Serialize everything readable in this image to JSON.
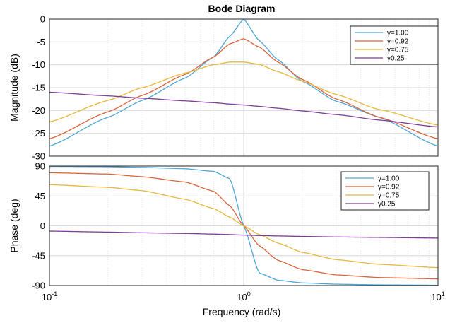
{
  "chart_data": {
    "type": "line",
    "title": "Bode Diagram",
    "xlabel": "Frequency  (rad/s)",
    "xscale": "log",
    "xlim": [
      0.1,
      10
    ],
    "x_ticks": [
      {
        "base": "10",
        "exp": "-1"
      },
      {
        "base": "10",
        "exp": "0"
      },
      {
        "base": "10",
        "exp": "1"
      }
    ],
    "grid": true,
    "legend_position": "top-right",
    "panels": [
      {
        "name": "magnitude",
        "ylabel": "Magnitude (dB)",
        "ylim": [
          -30,
          0
        ],
        "yticks": [
          "0",
          "-5",
          "-10",
          "-15",
          "-20",
          "-25",
          "-30"
        ],
        "ytick_values": [
          0,
          -5,
          -10,
          -15,
          -20,
          -25,
          -30
        ]
      },
      {
        "name": "phase",
        "ylabel": "Phase (deg)",
        "ylim": [
          -90,
          90
        ],
        "yticks": [
          "90",
          "45",
          "0",
          "-45",
          "-90"
        ],
        "ytick_values": [
          90,
          45,
          0,
          -45,
          -90
        ]
      }
    ],
    "series": [
      {
        "name": "γ=1.00",
        "color": "#4da6d6",
        "x": [
          0.1,
          0.2,
          0.3,
          0.5,
          0.7,
          0.85,
          1.0,
          1.2,
          1.5,
          2,
          3,
          5,
          10
        ],
        "magnitude": [
          -27.8,
          -21.5,
          -17.8,
          -12.9,
          -8.3,
          -3.7,
          0,
          -4.7,
          -8.9,
          -13.6,
          -18.0,
          -21.5,
          -27.8
        ],
        "phase": [
          89.5,
          89,
          88,
          86,
          82,
          71,
          0,
          -71,
          -82,
          -86,
          -88,
          -89,
          -89.5
        ]
      },
      {
        "name": "γ=0.92",
        "color": "#d9643a",
        "x": [
          0.1,
          0.2,
          0.3,
          0.5,
          0.7,
          0.85,
          1.0,
          1.2,
          1.5,
          2,
          3,
          5,
          10
        ],
        "magnitude": [
          -26.2,
          -20.3,
          -16.7,
          -12.1,
          -8.3,
          -5.4,
          -4.3,
          -6.1,
          -9.4,
          -13.2,
          -17.5,
          -21.5,
          -26.2
        ],
        "phase": [
          80,
          78,
          74,
          66,
          52,
          30,
          0,
          -30,
          -52,
          -66,
          -74,
          -78,
          -80
        ]
      },
      {
        "name": "γ=0.75",
        "color": "#e8b83a",
        "x": [
          0.1,
          0.2,
          0.3,
          0.5,
          0.7,
          0.85,
          1.0,
          1.2,
          1.5,
          2,
          3,
          5,
          10
        ],
        "magnitude": [
          -22.5,
          -17.8,
          -15.0,
          -11.8,
          -10.0,
          -9.4,
          -9.4,
          -9.9,
          -11.5,
          -13.6,
          -16.5,
          -19.8,
          -23.2
        ],
        "phase": [
          62,
          58,
          53,
          40,
          26,
          13,
          0,
          -13,
          -26,
          -40,
          -51,
          -58,
          -63
        ]
      },
      {
        "name": "γ0.25",
        "color": "#7e3d96",
        "x": [
          0.1,
          0.2,
          0.3,
          0.5,
          0.7,
          0.85,
          1.0,
          1.2,
          1.5,
          2,
          3,
          5,
          10
        ],
        "magnitude": [
          -16.0,
          -16.8,
          -17.3,
          -17.9,
          -18.3,
          -18.6,
          -18.8,
          -19.1,
          -19.5,
          -20.1,
          -20.9,
          -22.1,
          -23.6
        ],
        "phase": [
          -8,
          -9.5,
          -10.5,
          -11.5,
          -12.5,
          -13.2,
          -14,
          -14.7,
          -15.3,
          -16,
          -16.8,
          -17.5,
          -18.5
        ]
      }
    ]
  }
}
